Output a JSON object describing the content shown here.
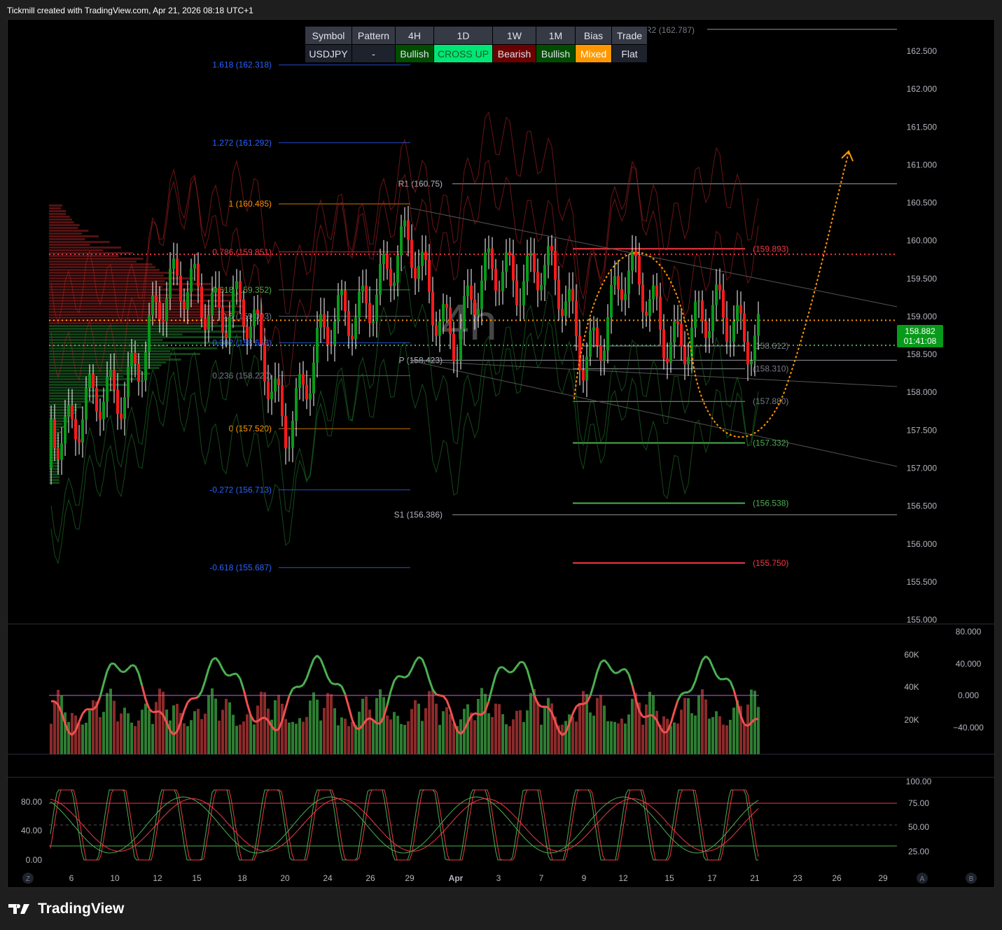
{
  "header": {
    "caption": "Tickmill created with TradingView.com, Apr 21, 2026 08:18 UTC+1"
  },
  "watermark": "4h",
  "branding": {
    "logo_text": "TradingView"
  },
  "table": {
    "headers": [
      "Symbol",
      "Pattern",
      "4H",
      "1D",
      "1W",
      "1M",
      "Bias",
      "Trade"
    ],
    "values": [
      "USDJPY",
      "-",
      "Bullish",
      "CROSS UP",
      "Bearish",
      "Bullish",
      "Mixed",
      "Flat"
    ],
    "value_bg": [
      "#1e222d",
      "#1e222d",
      "#004d00",
      "#00e676",
      "#6b0000",
      "#004d00",
      "#ff9800",
      "#1e222d"
    ],
    "value_fg": [
      "#e0e3eb",
      "#e0e3eb",
      "#e0e3eb",
      "#1b5e20",
      "#e0e3eb",
      "#e0e3eb",
      "#ffffff",
      "#e0e3eb"
    ]
  },
  "current_price": {
    "value": "158.882",
    "countdown": "01:41:08",
    "color": "#089a1a"
  },
  "scale_buttons": {
    "left": "Z",
    "a": "A",
    "b": "B"
  },
  "chart_data": [
    {
      "type": "candlestick",
      "symbol": "USDJPY",
      "interval": "4h",
      "price_axis": {
        "ticks": [
          "162.500",
          "162.000",
          "161.500",
          "161.000",
          "160.500",
          "160.000",
          "159.500",
          "159.000",
          "158.500",
          "158.000",
          "157.500",
          "157.000",
          "156.500",
          "156.000",
          "155.500",
          "155.000"
        ],
        "range": [
          155.0,
          162.5
        ]
      },
      "time_axis": {
        "ticks": [
          "6",
          "10",
          "12",
          "15",
          "18",
          "20",
          "24",
          "26",
          "29",
          "Apr",
          "3",
          "7",
          "9",
          "12",
          "15",
          "17",
          "21",
          "23",
          "26",
          "29"
        ]
      },
      "approx_close_at_ticks": [
        157.6,
        157.9,
        159.1,
        159.4,
        159.0,
        157.7,
        158.7,
        159.4,
        159.8,
        158.8,
        159.6,
        159.7,
        158.5,
        159.5,
        158.8,
        158.9,
        158.88
      ],
      "pivots": [
        {
          "label": "R2 (162.787)",
          "value": 162.787
        },
        {
          "label": "R1 (160.75)",
          "value": 160.75
        },
        {
          "label": "P (158.423)",
          "value": 158.423
        },
        {
          "label": "S1 (156.386)",
          "value": 156.386
        }
      ],
      "fibonacci": [
        {
          "label": "1.618 (162.318)",
          "value": 162.318,
          "color": "#2962ff"
        },
        {
          "label": "1.272 (161.292)",
          "value": 161.292,
          "color": "#2962ff"
        },
        {
          "label": "1 (160.485)",
          "value": 160.485,
          "color": "#ff9800"
        },
        {
          "label": "0.786 (159.851)",
          "value": 159.851,
          "color": "#f23645"
        },
        {
          "label": "0.618 (159.352)",
          "value": 159.352,
          "color": "#4caf50"
        },
        {
          "label": "0.5 (159.003)",
          "value": 159.003,
          "color": "#787b86"
        },
        {
          "label": "0.382 (158.653)",
          "value": 158.653,
          "color": "#2962ff"
        },
        {
          "label": "0.236 (158.220)",
          "value": 158.22,
          "color": "#787b86"
        },
        {
          "label": "0 (157.520)",
          "value": 157.52,
          "color": "#ff9800"
        },
        {
          "label": "-0.272 (156.713)",
          "value": 156.713,
          "color": "#2962ff"
        },
        {
          "label": "-0.618 (155.687)",
          "value": 155.687,
          "color": "#2962ff"
        }
      ],
      "levels": [
        {
          "label": "(159.893)",
          "value": 159.893,
          "color": "#f23645"
        },
        {
          "label": "(158.612)",
          "value": 158.612,
          "color": "#787b86"
        },
        {
          "label": "(158.310)",
          "value": 158.31,
          "color": "#787b86"
        },
        {
          "label": "(157.880)",
          "value": 157.88,
          "color": "#787b86"
        },
        {
          "label": "(157.332)",
          "value": 157.332,
          "color": "#4caf50"
        },
        {
          "label": "(156.538)",
          "value": 156.538,
          "color": "#4caf50"
        },
        {
          "label": "(155.750)",
          "value": 155.75,
          "color": "#f23645"
        }
      ],
      "dotted_lines": [
        {
          "value": 159.82,
          "color": "#f23645"
        },
        {
          "value": 158.95,
          "color": "#ff9800"
        },
        {
          "value": 158.62,
          "color": "#4caf50"
        }
      ]
    },
    {
      "type": "bar+line",
      "name": "volume-oscillator",
      "left_axis_ticks": [
        "60K",
        "40K",
        "20K"
      ],
      "right_axis_ticks": [
        "80.000",
        "40.000",
        "0.000",
        "−40.000"
      ]
    },
    {
      "type": "line",
      "name": "stochastic",
      "left_axis_ticks": [
        "80.00",
        "40.00",
        "0.00"
      ],
      "right_axis_ticks": [
        "100.00",
        "75.00",
        "50.00",
        "25.00"
      ],
      "overbought": 75,
      "oversold": 25
    }
  ]
}
